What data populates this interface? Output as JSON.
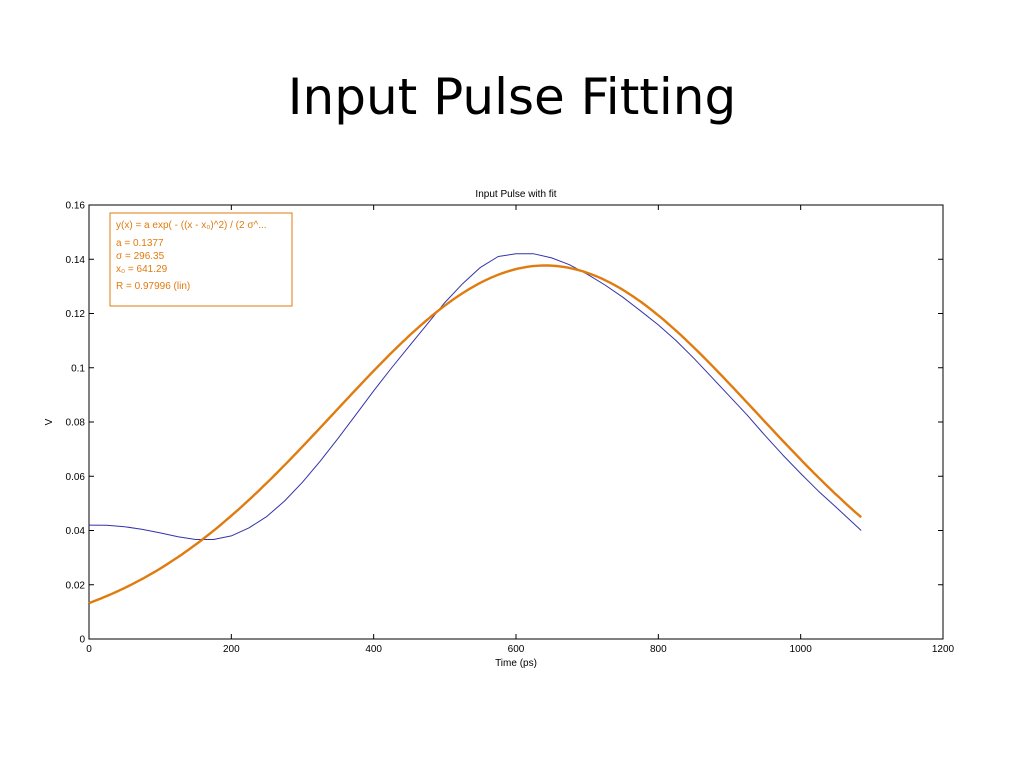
{
  "slide": {
    "title": "Input Pulse Fitting"
  },
  "chart_data": {
    "type": "line",
    "title": "Input Pulse with fit",
    "xlabel": "Time (ps)",
    "ylabel": "V",
    "xlim": [
      0,
      1200
    ],
    "ylim": [
      0,
      0.16
    ],
    "xticks": [
      0,
      200,
      400,
      600,
      800,
      1000,
      1200
    ],
    "yticks": [
      0,
      0.02,
      0.04,
      0.06,
      0.08,
      0.1,
      0.12,
      0.14,
      0.16
    ],
    "grid": false,
    "series": [
      {
        "color": "#3333aa",
        "x": [
          0,
          25,
          50,
          75,
          100,
          125,
          150,
          175,
          200,
          225,
          250,
          275,
          300,
          325,
          350,
          375,
          400,
          425,
          450,
          475,
          500,
          525,
          550,
          575,
          600,
          625,
          650,
          675,
          700,
          725,
          750,
          775,
          800,
          825,
          850,
          875,
          900,
          925,
          950,
          975,
          1000,
          1025,
          1050,
          1085
        ],
        "y": [
          0.042,
          0.0419,
          0.0414,
          0.0404,
          0.0391,
          0.0377,
          0.0367,
          0.0367,
          0.038,
          0.041,
          0.0452,
          0.0509,
          0.0578,
          0.0656,
          0.074,
          0.0827,
          0.0915,
          0.0999,
          0.108,
          0.116,
          0.124,
          0.131,
          0.137,
          0.141,
          0.142,
          0.142,
          0.1405,
          0.138,
          0.1345,
          0.1305,
          0.126,
          0.121,
          0.1158,
          0.11,
          0.1035,
          0.0965,
          0.0895,
          0.0825,
          0.075,
          0.0678,
          0.061,
          0.0545,
          0.0485,
          0.04
        ]
      },
      {
        "color": "#e07b10",
        "fit": true,
        "x_range": [
          0,
          1085
        ]
      }
    ],
    "annotation": {
      "lines": [
        "y(x) = a exp( - ((x - x₀)^2) / (2 σ^...",
        "a = 0.1377",
        "σ = 296.35",
        "x₀ = 641.29",
        "R = 0.97996  (lin)"
      ],
      "fit_params": {
        "a": 0.1377,
        "sigma": 296.35,
        "x0": 641.29
      },
      "color": "#e07b10"
    }
  }
}
